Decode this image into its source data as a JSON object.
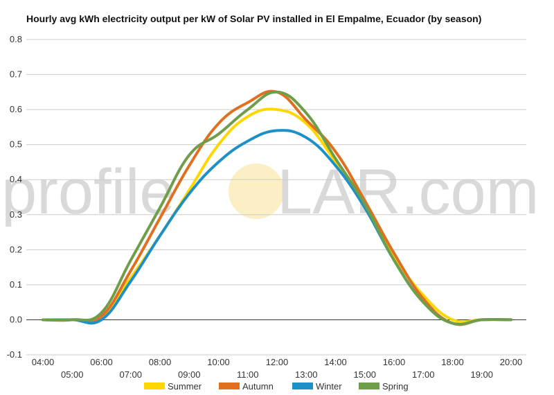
{
  "chart_data": {
    "type": "line",
    "title": "Hourly avg kWh electricity output per kW of Solar PV installed in El Empalme, Ecuador (by season)",
    "xlabel": "",
    "ylabel": "",
    "ylim": [
      -0.1,
      0.8
    ],
    "y_ticks": [
      "-0.1",
      "0.0",
      "0.1",
      "0.2",
      "0.3",
      "0.4",
      "0.5",
      "0.6",
      "0.7",
      "0.8"
    ],
    "x_ticks": [
      "04:00",
      "05:00",
      "06:00",
      "07:00",
      "08:00",
      "09:00",
      "10:00",
      "11:00",
      "12:00",
      "13:00",
      "14:00",
      "15:00",
      "16:00",
      "17:00",
      "18:00",
      "19:00",
      "20:00"
    ],
    "grid": true,
    "legend_position": "bottom",
    "watermark": {
      "left": "profile",
      "right": "LAR.com",
      "left_color": "#d9d9d9",
      "right_color": "#d9d9d9",
      "sun_color": "#fcefc5"
    },
    "series": [
      {
        "name": "Summer",
        "color": "#ffd700",
        "values": [
          0,
          0,
          0.01,
          0.12,
          0.24,
          0.37,
          0.5,
          0.58,
          0.6,
          0.56,
          0.45,
          0.32,
          0.18,
          0.07,
          0.0,
          0,
          0
        ]
      },
      {
        "name": "Autumn",
        "color": "#e07020",
        "values": [
          0,
          0,
          0.01,
          0.14,
          0.29,
          0.44,
          0.56,
          0.62,
          0.65,
          0.57,
          0.48,
          0.34,
          0.19,
          0.06,
          -0.01,
          0,
          0
        ]
      },
      {
        "name": "Winter",
        "color": "#1e90c8",
        "values": [
          0,
          0,
          0,
          0.11,
          0.24,
          0.36,
          0.45,
          0.51,
          0.54,
          0.52,
          0.44,
          0.32,
          0.17,
          0.05,
          -0.01,
          0,
          0
        ]
      },
      {
        "name": "Spring",
        "color": "#6f9e4a",
        "values": [
          0,
          0,
          0.02,
          0.17,
          0.32,
          0.47,
          0.53,
          0.6,
          0.65,
          0.59,
          0.46,
          0.33,
          0.17,
          0.05,
          -0.01,
          0,
          0
        ]
      }
    ]
  }
}
